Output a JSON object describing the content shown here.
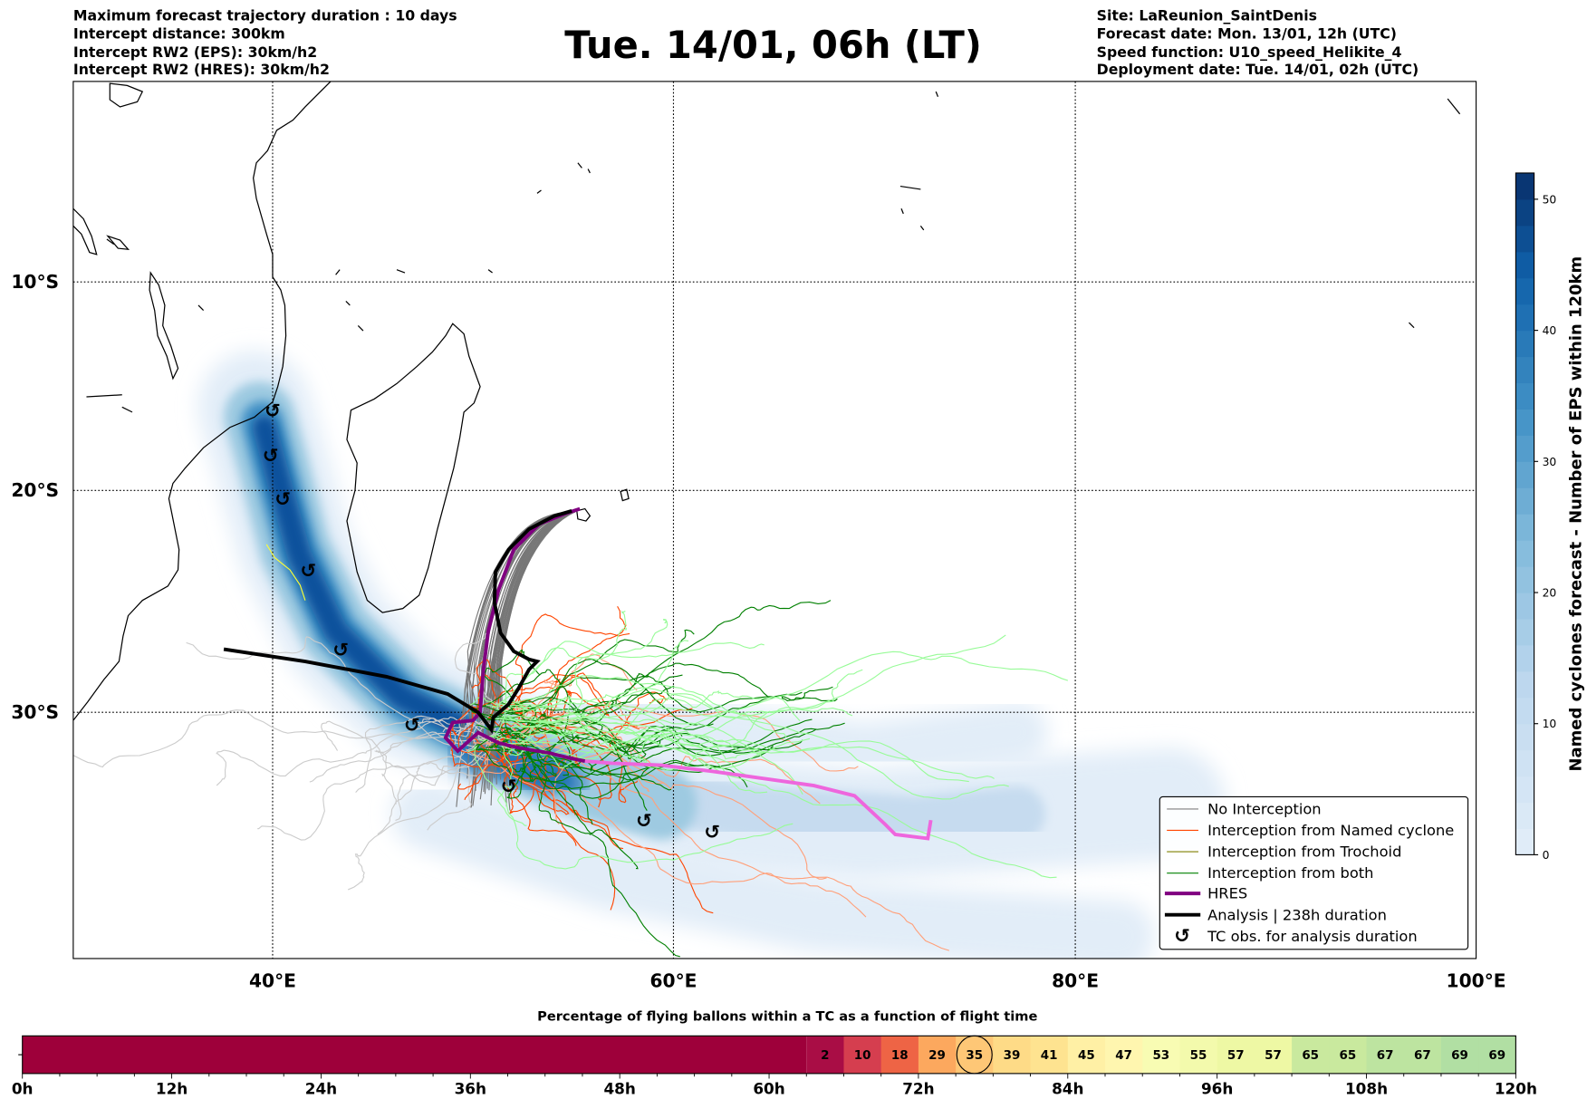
{
  "header": {
    "left": [
      "Maximum forecast trajectory duration : 10 days",
      "Intercept distance: 300km",
      "Intercept RW2 (EPS):  30km/h2",
      "Intercept RW2 (HRES): 30km/h2"
    ],
    "title": "Tue. 14/01, 06h (LT)",
    "right": [
      "Site: LaReunion_SaintDenis",
      "Forecast date: Mon. 13/01, 12h (UTC)",
      "Speed function: U10_speed_Helikite_4",
      "Deployment date: Tue. 14/01, 02h (UTC)"
    ]
  },
  "map": {
    "lat_labels": [
      "10°S",
      "20°S",
      "30°S"
    ],
    "lon_labels": [
      "40°E",
      "60°E",
      "80°E",
      "100°E"
    ],
    "lon_range": [
      30,
      100
    ],
    "lat_range": [
      0,
      -40
    ],
    "tc_marker_icon": "cyclone-symbol-icon"
  },
  "legend": {
    "items": [
      {
        "label": "No Interception",
        "color": "#7f7f7f"
      },
      {
        "label": "Interception from Named cyclone",
        "color": "#ff4500"
      },
      {
        "label": "Interception from Trochoid",
        "color": "#808000"
      },
      {
        "label": "Interception from both",
        "color": "#008000"
      },
      {
        "label": "HRES",
        "color": "#800080"
      },
      {
        "label": "Analysis | 238h duration",
        "color": "#000000"
      },
      {
        "label": "TC obs. for analysis duration",
        "color": "#000000"
      }
    ]
  },
  "colorbar": {
    "label": "Named cyclones forecast - Number of EPS within 120km",
    "ticks": [
      "0",
      "10",
      "20",
      "30",
      "40",
      "50"
    ],
    "range": [
      0,
      52
    ]
  },
  "chart_data": {
    "type": "heatmap",
    "title": "Percentage of flying ballons within a TC as a function of flight time",
    "x_ticks": [
      "0h",
      "12h",
      "24h",
      "36h",
      "48h",
      "60h",
      "72h",
      "84h",
      "96h",
      "108h",
      "120h"
    ],
    "x_range_hours": [
      0,
      120
    ],
    "bin_hours": 3,
    "first_labeled_bin_start_hours": 63,
    "values": [
      2,
      10,
      18,
      29,
      35,
      39,
      41,
      45,
      47,
      53,
      55,
      57,
      57,
      65,
      65,
      67,
      67,
      69,
      69
    ],
    "highlighted_value_index": 4,
    "unlabeled_color": "#9e003a"
  }
}
